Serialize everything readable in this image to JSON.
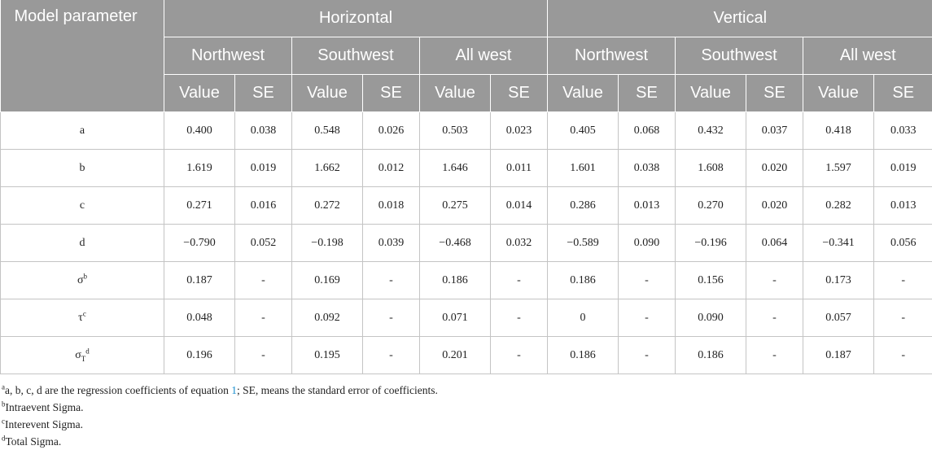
{
  "header": {
    "model_parameter": "Model parameter",
    "groups": [
      "Horizontal",
      "Vertical"
    ],
    "regions": [
      "Northwest",
      "Southwest",
      "All west",
      "Northwest",
      "Southwest",
      "All west"
    ],
    "value_label": "Value",
    "se_label": "SE"
  },
  "rows": [
    {
      "param": "a",
      "cells": [
        "0.400",
        "0.038",
        "0.548",
        "0.026",
        "0.503",
        "0.023",
        "0.405",
        "0.068",
        "0.432",
        "0.037",
        "0.418",
        "0.033"
      ]
    },
    {
      "param": "b",
      "cells": [
        "1.619",
        "0.019",
        "1.662",
        "0.012",
        "1.646",
        "0.011",
        "1.601",
        "0.038",
        "1.608",
        "0.020",
        "1.597",
        "0.019"
      ]
    },
    {
      "param": "c",
      "cells": [
        "0.271",
        "0.016",
        "0.272",
        "0.018",
        "0.275",
        "0.014",
        "0.286",
        "0.013",
        "0.270",
        "0.020",
        "0.282",
        "0.013"
      ]
    },
    {
      "param": "d",
      "cells": [
        "−0.790",
        "0.052",
        "−0.198",
        "0.039",
        "−0.468",
        "0.032",
        "−0.589",
        "0.090",
        "−0.196",
        "0.064",
        "−0.341",
        "0.056"
      ]
    },
    {
      "param": "σ",
      "sup": "b",
      "cells": [
        "0.187",
        "-",
        "0.169",
        "-",
        "0.186",
        "-",
        "0.186",
        "-",
        "0.156",
        "-",
        "0.173",
        "-"
      ]
    },
    {
      "param": "τ",
      "sup": "c",
      "cells": [
        "0.048",
        "-",
        "0.092",
        "-",
        "0.071",
        "-",
        "0",
        "-",
        "0.090",
        "-",
        "0.057",
        "-"
      ]
    },
    {
      "param": "σ",
      "sub": "T",
      "sup": "d",
      "cells": [
        "0.196",
        "-",
        "0.195",
        "-",
        "0.201",
        "-",
        "0.186",
        "-",
        "0.186",
        "-",
        "0.187",
        "-"
      ]
    }
  ],
  "footnotes": {
    "a": {
      "mark": "a",
      "text_before": "a, b, c, d are the regression coefficients of equation ",
      "ref": "1",
      "text_after": "; SE, means the standard error of coefficients."
    },
    "b": {
      "mark": "b",
      "text": "Intraevent Sigma."
    },
    "c": {
      "mark": "c",
      "text": "Interevent Sigma."
    },
    "d": {
      "mark": "d",
      "text": "Total Sigma."
    }
  }
}
